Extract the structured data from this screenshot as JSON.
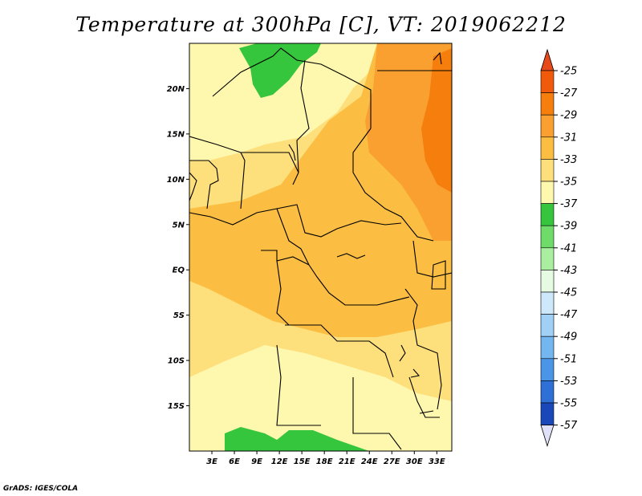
{
  "title": "Temperature at 300hPa [C], VT: 2019062212",
  "credit": "GrADS: IGES/COLA",
  "map": {
    "lon_range": [
      0,
      35
    ],
    "lat_range": [
      -20,
      25
    ],
    "lon_ticks": [
      {
        "value": 3,
        "label": "3E"
      },
      {
        "value": 6,
        "label": "6E"
      },
      {
        "value": 9,
        "label": "9E"
      },
      {
        "value": 12,
        "label": "12E"
      },
      {
        "value": 15,
        "label": "15E"
      },
      {
        "value": 18,
        "label": "18E"
      },
      {
        "value": 21,
        "label": "21E"
      },
      {
        "value": 24,
        "label": "24E"
      },
      {
        "value": 27,
        "label": "27E"
      },
      {
        "value": 30,
        "label": "30E"
      },
      {
        "value": 33,
        "label": "33E"
      }
    ],
    "lat_ticks": [
      {
        "value": 20,
        "label": "20N"
      },
      {
        "value": 15,
        "label": "15N"
      },
      {
        "value": 10,
        "label": "10N"
      },
      {
        "value": 5,
        "label": "5N"
      },
      {
        "value": 0,
        "label": "EQ"
      },
      {
        "value": -5,
        "label": "5S"
      },
      {
        "value": -10,
        "label": "10S"
      },
      {
        "value": -15,
        "label": "15S"
      }
    ]
  },
  "colorbar": {
    "levels": [
      {
        "label": "-25",
        "color": "#f05a0a"
      },
      {
        "label": "-27",
        "color": "#f57e0c"
      },
      {
        "label": "-29",
        "color": "#f9a030"
      },
      {
        "label": "-31",
        "color": "#fbbe43"
      },
      {
        "label": "-33",
        "color": "#fde07c"
      },
      {
        "label": "-35",
        "color": "#fef7ae"
      },
      {
        "label": "-37",
        "color": "#36c63e"
      },
      {
        "label": "-39",
        "color": "#6fdc6a"
      },
      {
        "label": "-41",
        "color": "#aaeea0"
      },
      {
        "label": "-43",
        "color": "#e5fbe2"
      },
      {
        "label": "-45",
        "color": "#cde8fa"
      },
      {
        "label": "-47",
        "color": "#a0d0f5"
      },
      {
        "label": "-49",
        "color": "#73b6f0"
      },
      {
        "label": "-51",
        "color": "#4a95e6"
      },
      {
        "label": "-53",
        "color": "#2f70d6"
      },
      {
        "label": "-55",
        "color": "#1b48b8"
      },
      {
        "label": "-57",
        "color": "#0c1e86"
      }
    ],
    "top_cap_color": "#e8491a",
    "bottom_cap_color": "#e0e0f8"
  }
}
